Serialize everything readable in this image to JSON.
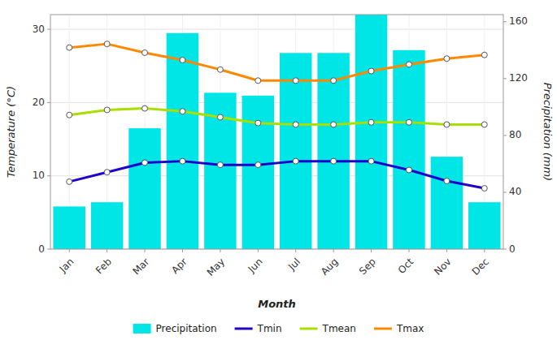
{
  "chart_data": {
    "type": "bar",
    "xlabel": "Month",
    "ylabel": "Temperature (°C)",
    "y2label": "Precipitation (mm)",
    "categories": [
      "Jan",
      "Feb",
      "Mar",
      "Apr",
      "May",
      "Jun",
      "Jul",
      "Aug",
      "Sep",
      "Oct",
      "Nov",
      "Dec"
    ],
    "series": [
      {
        "name": "Precipitation",
        "type": "bar",
        "axis": "y2",
        "color": "#00E5E5",
        "values": [
          30,
          33,
          85,
          152,
          110,
          108,
          138,
          138,
          165,
          140,
          65,
          33
        ]
      },
      {
        "name": "Tmin",
        "type": "line",
        "color": "#2200CC",
        "marker": "circle",
        "values": [
          9.2,
          10.5,
          11.8,
          12.0,
          11.5,
          11.5,
          12.0,
          12.0,
          12.0,
          10.8,
          9.3,
          8.3
        ]
      },
      {
        "name": "Tmean",
        "type": "line",
        "color": "#AADD00",
        "marker": "circle",
        "values": [
          18.3,
          19.0,
          19.2,
          18.8,
          18.0,
          17.2,
          17.0,
          17.0,
          17.3,
          17.3,
          17.0,
          17.0
        ]
      },
      {
        "name": "Tmax",
        "type": "line",
        "color": "#FF8800",
        "marker": "circle",
        "values": [
          27.5,
          28.0,
          26.8,
          25.8,
          24.5,
          23.0,
          23.0,
          23.0,
          24.3,
          25.2,
          26.0,
          26.5
        ]
      }
    ],
    "ylim": [
      0,
      32
    ],
    "yticks": [
      0,
      10,
      20,
      30
    ],
    "y2lim": [
      0,
      165
    ],
    "y2ticks": [
      0,
      40,
      80,
      120,
      160
    ],
    "grid": true,
    "legend": "bottom"
  }
}
